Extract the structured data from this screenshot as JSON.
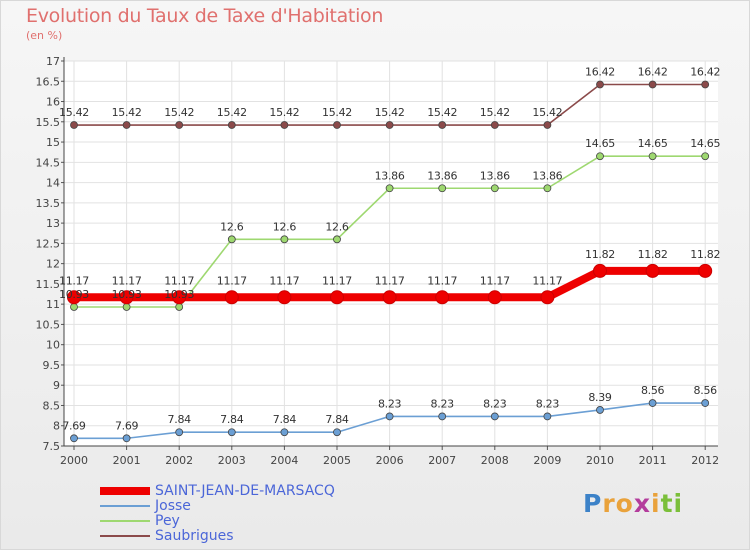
{
  "chart_data": {
    "type": "line",
    "title": "Evolution du Taux de Taxe d'Habitation",
    "subtitle": "(en %)",
    "xlabel": "",
    "ylabel": "",
    "x": [
      "2000",
      "2001",
      "2002",
      "2003",
      "2004",
      "2005",
      "2006",
      "2007",
      "2008",
      "2009",
      "2010",
      "2011",
      "2012"
    ],
    "ylim": [
      7.5,
      17
    ],
    "yticks": [
      "7.5",
      "8",
      "8.5",
      "9",
      "9.5",
      "10",
      "10.5",
      "11",
      "11.5",
      "12",
      "12.5",
      "13",
      "13.5",
      "14",
      "14.5",
      "15",
      "15.5",
      "16",
      "16.5",
      "17"
    ],
    "series": [
      {
        "name": "SAINT-JEAN-DE-MARSACQ",
        "color": "#ee0000",
        "values": [
          11.17,
          11.17,
          11.17,
          11.17,
          11.17,
          11.17,
          11.17,
          11.17,
          11.17,
          11.17,
          11.82,
          11.82,
          11.82
        ],
        "labels": [
          "11.17",
          "11.17",
          "11.17",
          "11.17",
          "11.17",
          "11.17",
          "11.17",
          "11.17",
          "11.17",
          "11.17",
          "11.82",
          "11.82",
          "11.82"
        ]
      },
      {
        "name": "Josse",
        "color": "#6b9fd4",
        "values": [
          7.69,
          7.69,
          7.84,
          7.84,
          7.84,
          7.84,
          8.23,
          8.23,
          8.23,
          8.23,
          8.39,
          8.56,
          8.56
        ],
        "labels": [
          "7.69",
          "7.69",
          "7.84",
          "7.84",
          "7.84",
          "7.84",
          "8.23",
          "8.23",
          "8.23",
          "8.23",
          "8.39",
          "8.56",
          "8.56"
        ]
      },
      {
        "name": "Pey",
        "color": "#9ed870",
        "values": [
          10.93,
          10.93,
          10.93,
          12.6,
          12.6,
          12.6,
          13.86,
          13.86,
          13.86,
          13.86,
          14.65,
          14.65,
          14.65
        ],
        "labels": [
          "10.93",
          "10.93",
          "10.93",
          "12.6",
          "12.6",
          "12.6",
          "13.86",
          "13.86",
          "13.86",
          "13.86",
          "14.65",
          "14.65",
          "14.65"
        ]
      },
      {
        "name": "Saubrigues",
        "color": "#8b4a4a",
        "values": [
          15.42,
          15.42,
          15.42,
          15.42,
          15.42,
          15.42,
          15.42,
          15.42,
          15.42,
          15.42,
          16.42,
          16.42,
          16.42
        ],
        "labels": [
          "15.42",
          "15.42",
          "15.42",
          "15.42",
          "15.42",
          "15.42",
          "15.42",
          "15.42",
          "15.42",
          "15.42",
          "16.42",
          "16.42",
          "16.42"
        ]
      }
    ],
    "legend_position": "bottom-left",
    "grid": true
  },
  "logo": {
    "letters": [
      "P",
      "r",
      "o",
      "x",
      "i",
      "t",
      "i"
    ],
    "colors": [
      "#3c82c8",
      "#e9a23b",
      "#e9a23b",
      "#b43c9c",
      "#e9a23b",
      "#7bbf3a",
      "#7bbf3a"
    ]
  }
}
